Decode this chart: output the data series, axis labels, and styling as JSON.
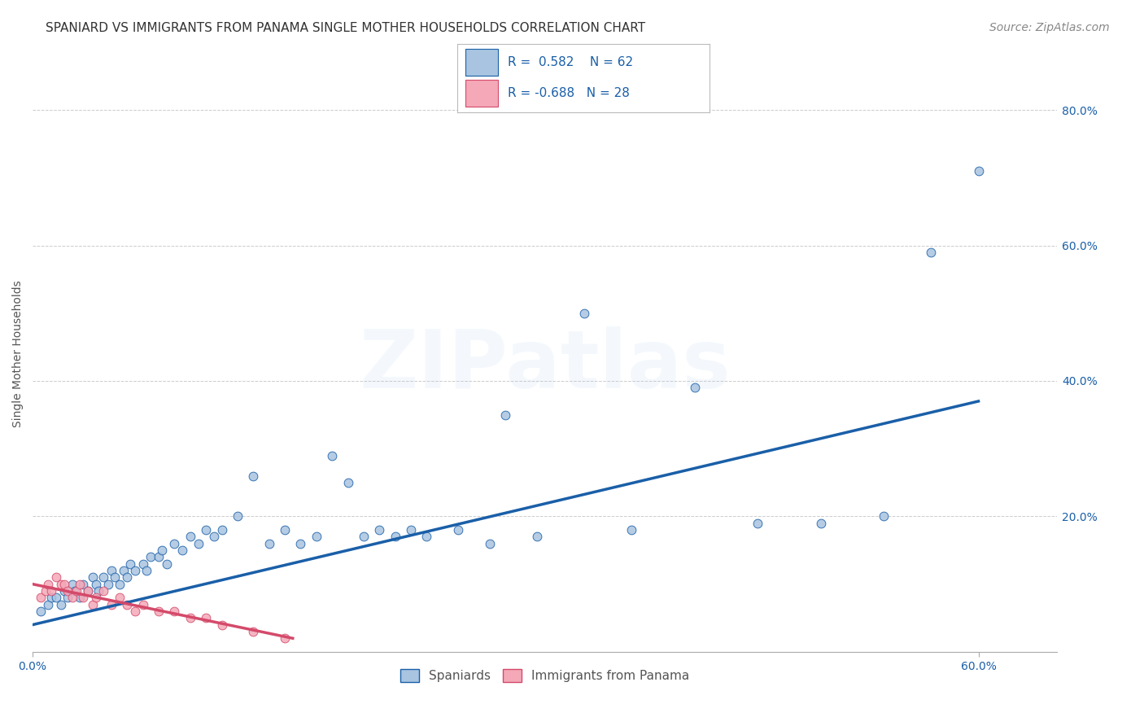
{
  "title": "SPANIARD VS IMMIGRANTS FROM PANAMA SINGLE MOTHER HOUSEHOLDS CORRELATION CHART",
  "source": "Source: ZipAtlas.com",
  "ylabel": "Single Mother Households",
  "xlim": [
    0.0,
    0.65
  ],
  "ylim": [
    0.0,
    0.88
  ],
  "x_ticks": [
    0.0,
    0.6
  ],
  "x_tick_labels": [
    "0.0%",
    "60.0%"
  ],
  "y_ticks": [
    0.0,
    0.2,
    0.4,
    0.6,
    0.8
  ],
  "y_tick_labels": [
    "",
    "20.0%",
    "40.0%",
    "60.0%",
    "80.0%"
  ],
  "grid_color": "#cccccc",
  "background_color": "#ffffff",
  "blue_R": 0.582,
  "blue_N": 62,
  "pink_R": -0.688,
  "pink_N": 28,
  "blue_color": "#a8c4e0",
  "pink_color": "#f4a8b8",
  "blue_line_color": "#1a5fa8",
  "pink_line_color": "#d44a6a",
  "legend_label_blue": "Spaniards",
  "legend_label_pink": "Immigrants from Panama",
  "blue_scatter_x": [
    0.005,
    0.01,
    0.012,
    0.015,
    0.018,
    0.02,
    0.022,
    0.025,
    0.027,
    0.03,
    0.032,
    0.035,
    0.038,
    0.04,
    0.042,
    0.045,
    0.048,
    0.05,
    0.052,
    0.055,
    0.058,
    0.06,
    0.062,
    0.065,
    0.07,
    0.072,
    0.075,
    0.08,
    0.082,
    0.085,
    0.09,
    0.095,
    0.1,
    0.105,
    0.11,
    0.115,
    0.12,
    0.13,
    0.14,
    0.15,
    0.16,
    0.17,
    0.18,
    0.19,
    0.2,
    0.21,
    0.22,
    0.23,
    0.24,
    0.25,
    0.27,
    0.29,
    0.3,
    0.32,
    0.35,
    0.38,
    0.42,
    0.46,
    0.5,
    0.54,
    0.57,
    0.6
  ],
  "blue_scatter_y": [
    0.06,
    0.07,
    0.08,
    0.08,
    0.07,
    0.09,
    0.08,
    0.1,
    0.09,
    0.08,
    0.1,
    0.09,
    0.11,
    0.1,
    0.09,
    0.11,
    0.1,
    0.12,
    0.11,
    0.1,
    0.12,
    0.11,
    0.13,
    0.12,
    0.13,
    0.12,
    0.14,
    0.14,
    0.15,
    0.13,
    0.16,
    0.15,
    0.17,
    0.16,
    0.18,
    0.17,
    0.18,
    0.2,
    0.26,
    0.16,
    0.18,
    0.16,
    0.17,
    0.29,
    0.25,
    0.17,
    0.18,
    0.17,
    0.18,
    0.17,
    0.18,
    0.16,
    0.35,
    0.17,
    0.5,
    0.18,
    0.39,
    0.19,
    0.19,
    0.2,
    0.59,
    0.71
  ],
  "pink_scatter_x": [
    0.005,
    0.008,
    0.01,
    0.012,
    0.015,
    0.018,
    0.02,
    0.022,
    0.025,
    0.028,
    0.03,
    0.032,
    0.035,
    0.038,
    0.04,
    0.045,
    0.05,
    0.055,
    0.06,
    0.065,
    0.07,
    0.08,
    0.09,
    0.1,
    0.11,
    0.12,
    0.14,
    0.16
  ],
  "pink_scatter_y": [
    0.08,
    0.09,
    0.1,
    0.09,
    0.11,
    0.1,
    0.1,
    0.09,
    0.08,
    0.09,
    0.1,
    0.08,
    0.09,
    0.07,
    0.08,
    0.09,
    0.07,
    0.08,
    0.07,
    0.06,
    0.07,
    0.06,
    0.06,
    0.05,
    0.05,
    0.04,
    0.03,
    0.02
  ],
  "blue_line_x": [
    0.0,
    0.6
  ],
  "blue_line_y": [
    0.04,
    0.37
  ],
  "pink_line_x": [
    0.0,
    0.165
  ],
  "pink_line_y": [
    0.1,
    0.02
  ],
  "title_fontsize": 11,
  "source_fontsize": 10,
  "axis_label_fontsize": 10,
  "tick_fontsize": 10,
  "legend_fontsize": 11,
  "marker_size": 60,
  "line_width": 2.5,
  "watermark_text": "ZIPatlas",
  "watermark_alpha": 0.12,
  "watermark_fontsize": 72
}
